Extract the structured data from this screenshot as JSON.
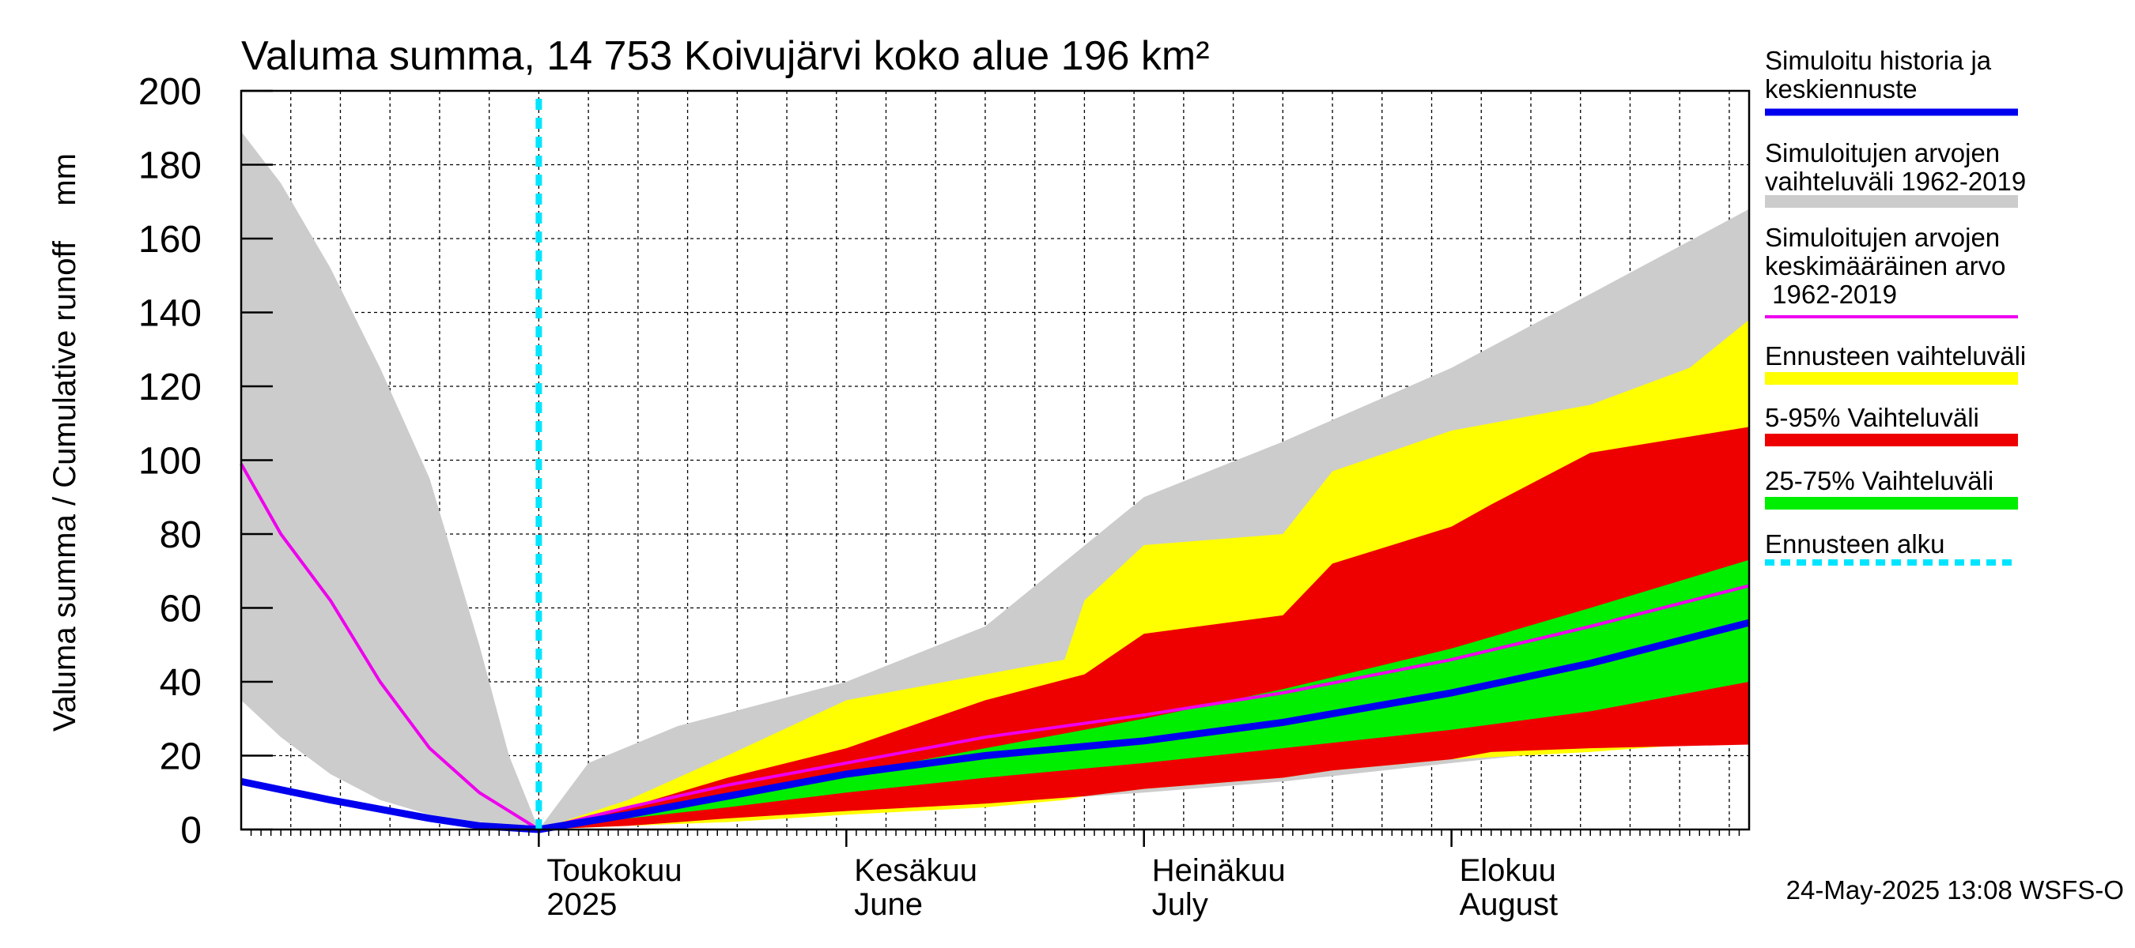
{
  "chart_data": {
    "type": "area",
    "title": "Valuma summa, 14 753 Koivujärvi koko alue 196 km²",
    "ylabel": "Valuma summa / Cumulative runoff    mm",
    "ylim": [
      0,
      200
    ],
    "y_ticks": [
      0,
      20,
      40,
      60,
      80,
      100,
      120,
      140,
      160,
      180,
      200
    ],
    "xlim": [
      "2025-04-01",
      "2025-08-31"
    ],
    "x_tick_labels": [
      {
        "date": "2025-05-01",
        "fi": "Toukokuu",
        "en": "2025"
      },
      {
        "date": "2025-06-01",
        "fi": "Kesäkuu",
        "en": "June"
      },
      {
        "date": "2025-07-01",
        "fi": "Heinäkuu",
        "en": "July"
      },
      {
        "date": "2025-08-01",
        "fi": "Elokuu",
        "en": "August"
      }
    ],
    "grid": true,
    "legend_placement": "right",
    "forecast_start": "2025-05-01",
    "legend": [
      {
        "key": "sim",
        "label": "Simuloitu historia ja\nkeskiennuste",
        "color": "#0000ee"
      },
      {
        "key": "range",
        "label": "Simuloitujen arvojen\nvaihteluväli 1962-2019",
        "color": "#cccccc"
      },
      {
        "key": "mean",
        "label": "Simuloitujen arvojen\nkeskimääräinen arvo\n   1962-2019",
        "color": "#ee00ee"
      },
      {
        "key": "fc_range",
        "label": "Ennusteen vaihteluväli",
        "color": "#ffff00"
      },
      {
        "key": "p5_95",
        "label": "5-95% Vaihteluväli",
        "color": "#ee0000"
      },
      {
        "key": "p25_75",
        "label": "25-75% Vaihteluväli",
        "color": "#00ee00"
      },
      {
        "key": "start",
        "label": "Ennusteen alku",
        "color": "#00e5ff"
      }
    ],
    "series": [
      {
        "key": "range_hist",
        "x": [
          "2025-04-01",
          "2025-04-05",
          "2025-04-10",
          "2025-04-15",
          "2025-04-20",
          "2025-04-25",
          "2025-04-28",
          "2025-05-01"
        ],
        "low": [
          35,
          25,
          15,
          8,
          4,
          2,
          1,
          0
        ],
        "high": [
          189,
          175,
          152,
          125,
          95,
          50,
          20,
          0
        ]
      },
      {
        "key": "range_fc",
        "x": [
          "2025-05-01",
          "2025-05-06",
          "2025-05-15",
          "2025-06-01",
          "2025-06-15",
          "2025-07-01",
          "2025-07-15",
          "2025-08-01",
          "2025-08-15",
          "2025-08-31"
        ],
        "low": [
          0,
          1,
          2,
          4,
          7,
          10,
          13,
          18,
          22,
          25
        ],
        "high": [
          0,
          18,
          28,
          40,
          55,
          90,
          105,
          125,
          145,
          168
        ]
      },
      {
        "key": "fc_range",
        "x": [
          "2025-05-01",
          "2025-05-10",
          "2025-05-20",
          "2025-06-01",
          "2025-06-15",
          "2025-06-23",
          "2025-06-25",
          "2025-07-01",
          "2025-07-15",
          "2025-07-20",
          "2025-08-01",
          "2025-08-15",
          "2025-08-25",
          "2025-08-31"
        ],
        "low": [
          0,
          1,
          2,
          4,
          6,
          8,
          9,
          11,
          14,
          16,
          19,
          21,
          23,
          24
        ],
        "high": [
          0,
          8,
          20,
          35,
          42,
          46,
          62,
          77,
          80,
          97,
          108,
          115,
          125,
          138
        ]
      },
      {
        "key": "p5_95",
        "x": [
          "2025-05-01",
          "2025-05-10",
          "2025-05-20",
          "2025-06-01",
          "2025-06-15",
          "2025-06-25",
          "2025-07-01",
          "2025-07-15",
          "2025-07-20",
          "2025-08-01",
          "2025-08-05",
          "2025-08-15",
          "2025-08-31"
        ],
        "low": [
          0,
          1,
          3,
          5,
          7,
          9,
          11,
          14,
          16,
          19,
          21,
          22,
          23
        ],
        "high": [
          0,
          6,
          14,
          22,
          35,
          42,
          53,
          58,
          72,
          82,
          88,
          102,
          109
        ]
      },
      {
        "key": "p25_75",
        "x": [
          "2025-05-01",
          "2025-05-10",
          "2025-05-20",
          "2025-06-01",
          "2025-06-15",
          "2025-07-01",
          "2025-07-15",
          "2025-08-01",
          "2025-08-15",
          "2025-08-31"
        ],
        "low": [
          0,
          3,
          6,
          10,
          14,
          18,
          22,
          27,
          32,
          40
        ],
        "high": [
          0,
          4,
          9,
          15,
          22,
          30,
          38,
          49,
          60,
          73
        ]
      },
      {
        "key": "mean",
        "x": [
          "2025-04-01",
          "2025-04-05",
          "2025-04-10",
          "2025-04-15",
          "2025-04-20",
          "2025-04-25",
          "2025-05-01",
          "2025-05-10",
          "2025-05-20",
          "2025-06-01",
          "2025-06-15",
          "2025-07-01",
          "2025-07-15",
          "2025-08-01",
          "2025-08-15",
          "2025-08-31"
        ],
        "y": [
          99,
          80,
          62,
          40,
          22,
          10,
          0,
          6,
          12,
          18,
          25,
          31,
          37,
          46,
          55,
          66
        ]
      },
      {
        "key": "sim",
        "x": [
          "2025-04-01",
          "2025-04-10",
          "2025-04-20",
          "2025-04-25",
          "2025-05-01",
          "2025-05-10",
          "2025-05-20",
          "2025-06-01",
          "2025-06-15",
          "2025-07-01",
          "2025-07-15",
          "2025-08-01",
          "2025-08-15",
          "2025-08-31"
        ],
        "y": [
          13,
          8,
          3,
          1,
          0,
          4,
          9,
          15,
          20,
          24,
          29,
          37,
          45,
          56
        ]
      }
    ]
  },
  "footer": {
    "timestamp": "24-May-2025 13:08 WSFS-O"
  }
}
